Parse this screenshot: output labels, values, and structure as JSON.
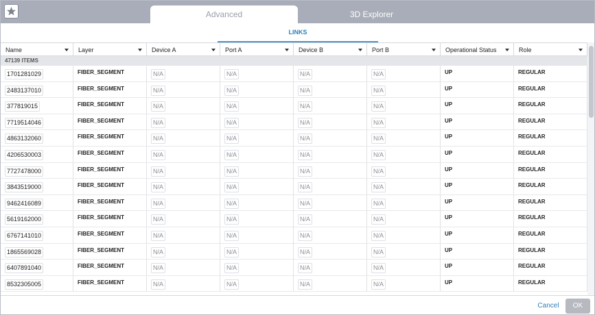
{
  "tabs": [
    "Advanced",
    "3D Explorer"
  ],
  "subtab": "LINKS",
  "table": {
    "columns": [
      "Name",
      "Layer",
      "Device A",
      "Port A",
      "Device B",
      "Port B",
      "Operational Status",
      "Role"
    ],
    "group_label": "47139 ITEMS",
    "rows": [
      [
        "1701281029",
        "FIBER_SEGMENT",
        "N/A",
        "N/A",
        "N/A",
        "N/A",
        "UP",
        "REGULAR"
      ],
      [
        "2483137010",
        "FIBER_SEGMENT",
        "N/A",
        "N/A",
        "N/A",
        "N/A",
        "UP",
        "REGULAR"
      ],
      [
        "377819015",
        "FIBER_SEGMENT",
        "N/A",
        "N/A",
        "N/A",
        "N/A",
        "UP",
        "REGULAR"
      ],
      [
        "7719514046",
        "FIBER_SEGMENT",
        "N/A",
        "N/A",
        "N/A",
        "N/A",
        "UP",
        "REGULAR"
      ],
      [
        "4863132060",
        "FIBER_SEGMENT",
        "N/A",
        "N/A",
        "N/A",
        "N/A",
        "UP",
        "REGULAR"
      ],
      [
        "4206530003",
        "FIBER_SEGMENT",
        "N/A",
        "N/A",
        "N/A",
        "N/A",
        "UP",
        "REGULAR"
      ],
      [
        "7727478000",
        "FIBER_SEGMENT",
        "N/A",
        "N/A",
        "N/A",
        "N/A",
        "UP",
        "REGULAR"
      ],
      [
        "3843519000",
        "FIBER_SEGMENT",
        "N/A",
        "N/A",
        "N/A",
        "N/A",
        "UP",
        "REGULAR"
      ],
      [
        "9462416089",
        "FIBER_SEGMENT",
        "N/A",
        "N/A",
        "N/A",
        "N/A",
        "UP",
        "REGULAR"
      ],
      [
        "5619162000",
        "FIBER_SEGMENT",
        "N/A",
        "N/A",
        "N/A",
        "N/A",
        "UP",
        "REGULAR"
      ],
      [
        "6767141010",
        "FIBER_SEGMENT",
        "N/A",
        "N/A",
        "N/A",
        "N/A",
        "UP",
        "REGULAR"
      ],
      [
        "1865569028",
        "FIBER_SEGMENT",
        "N/A",
        "N/A",
        "N/A",
        "N/A",
        "UP",
        "REGULAR"
      ],
      [
        "6407891040",
        "FIBER_SEGMENT",
        "N/A",
        "N/A",
        "N/A",
        "N/A",
        "UP",
        "REGULAR"
      ],
      [
        "8532305005",
        "FIBER_SEGMENT",
        "N/A",
        "N/A",
        "N/A",
        "N/A",
        "UP",
        "REGULAR"
      ]
    ]
  },
  "buttons": {
    "cancel": "Cancel",
    "ok": "OK"
  }
}
